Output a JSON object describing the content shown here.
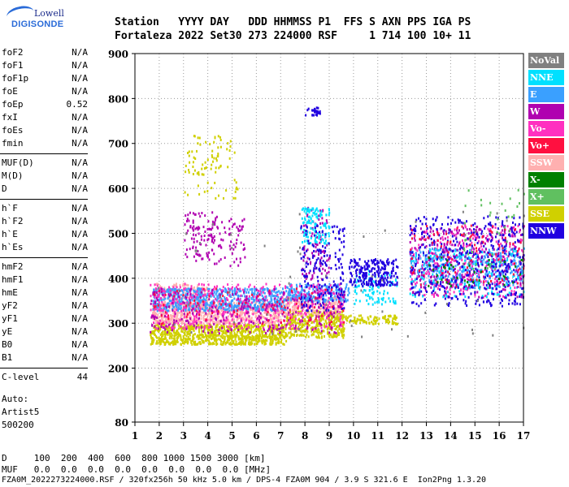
{
  "brand": {
    "line1": "Lowell",
    "line2": "DIGISONDE"
  },
  "header": {
    "row1": "Station   YYYY DAY   DDD HHMMSS P1  FFS S AXN PPS IGA PS",
    "row2": "Fortaleza 2022 Set30 273 224000 RSF     1 714 100 10+ 11"
  },
  "params": [
    {
      "label": "foF2",
      "value": "N/A"
    },
    {
      "label": "foF1",
      "value": "N/A"
    },
    {
      "label": "foF1p",
      "value": "N/A"
    },
    {
      "label": "foE",
      "value": "N/A"
    },
    {
      "label": "foEp",
      "value": "0.52"
    },
    {
      "label": "fxI",
      "value": "N/A"
    },
    {
      "label": "foEs",
      "value": "N/A"
    },
    {
      "label": "fmin",
      "value": "N/A"
    },
    {
      "label": "MUF(D)",
      "value": "N/A"
    },
    {
      "label": "M(D)",
      "value": "N/A"
    },
    {
      "label": "D",
      "value": "N/A"
    },
    {
      "label": "h`F",
      "value": "N/A"
    },
    {
      "label": "h`F2",
      "value": "N/A"
    },
    {
      "label": "h`E",
      "value": "N/A"
    },
    {
      "label": "h`Es",
      "value": "N/A"
    },
    {
      "label": "hmF2",
      "value": "N/A"
    },
    {
      "label": "hmF1",
      "value": "N/A"
    },
    {
      "label": "hmE",
      "value": "N/A"
    },
    {
      "label": "yF2",
      "value": "N/A"
    },
    {
      "label": "yF1",
      "value": "N/A"
    },
    {
      "label": "yE",
      "value": "N/A"
    },
    {
      "label": "B0",
      "value": "N/A"
    },
    {
      "label": "B1",
      "value": "N/A"
    },
    {
      "label": "C-level",
      "value": "44"
    }
  ],
  "auto": {
    "line1": "Auto:",
    "line2": "Artist5",
    "line3": "500200"
  },
  "legend": [
    {
      "label": "NoVal",
      "color": "#808080"
    },
    {
      "label": "NNE",
      "color": "#00e0ff"
    },
    {
      "label": "E",
      "color": "#3aa0ff"
    },
    {
      "label": "W",
      "color": "#b000b0"
    },
    {
      "label": "Vo-",
      "color": "#ff30c0"
    },
    {
      "label": "Vo+",
      "color": "#ff1040"
    },
    {
      "label": "SSW",
      "color": "#ffb0b0"
    },
    {
      "label": "X-",
      "color": "#008000"
    },
    {
      "label": "X+",
      "color": "#60c060"
    },
    {
      "label": "SSE",
      "color": "#d0d000"
    },
    {
      "label": "NNW",
      "color": "#2000e0"
    }
  ],
  "footer": {
    "line1": "D     100  200  400  600  800 1000 1500 3000 [km]",
    "line2": "MUF   0.0  0.0  0.0  0.0  0.0  0.0  0.0  0.0 [MHz]"
  },
  "file_line": "FZA0M_2022273224000.RSF / 320fx256h 50 kHz 5.0 km / DPS-4 FZA0M 904 / 3.9 S 321.6 E  Ion2Png 1.3.20",
  "chart_data": {
    "type": "scatter",
    "xlim": [
      1,
      17
    ],
    "ylim": [
      80,
      900
    ],
    "x_ticks": [
      1,
      2,
      3,
      4,
      5,
      6,
      7,
      8,
      9,
      10,
      11,
      12,
      13,
      14,
      15,
      16,
      17
    ],
    "y_ticks": [
      80,
      200,
      300,
      400,
      500,
      600,
      700,
      800,
      900
    ],
    "grid": true,
    "legend_position": "right",
    "clusters": [
      {
        "series": "SSE",
        "x": [
          1.6,
          7.2
        ],
        "y": [
          255,
          300
        ],
        "n": 900
      },
      {
        "series": "SSE",
        "x": [
          7.2,
          9.6
        ],
        "y": [
          270,
          330
        ],
        "n": 350
      },
      {
        "series": "SSE",
        "x": [
          9.0,
          11.8
        ],
        "y": [
          300,
          320
        ],
        "n": 120
      },
      {
        "series": "SSE",
        "x": [
          3.0,
          5.2
        ],
        "y": [
          580,
          720
        ],
        "n": 90
      },
      {
        "series": "SSW",
        "x": [
          1.7,
          7.0
        ],
        "y": [
          300,
          350
        ],
        "n": 700
      },
      {
        "series": "SSW",
        "x": [
          7.0,
          9.5
        ],
        "y": [
          320,
          360
        ],
        "n": 250
      },
      {
        "series": "SSW",
        "x": [
          1.8,
          4.0
        ],
        "y": [
          340,
          390
        ],
        "n": 150
      },
      {
        "series": "E",
        "x": [
          1.7,
          7.2
        ],
        "y": [
          330,
          380
        ],
        "n": 650
      },
      {
        "series": "E",
        "x": [
          7.2,
          9.8
        ],
        "y": [
          350,
          390
        ],
        "n": 220
      },
      {
        "series": "E",
        "x": [
          12.3,
          17.0
        ],
        "y": [
          380,
          470
        ],
        "n": 400
      },
      {
        "series": "Vo-",
        "x": [
          1.6,
          9.6
        ],
        "y": [
          290,
          390
        ],
        "n": 450
      },
      {
        "series": "Vo-",
        "x": [
          12.3,
          17.0
        ],
        "y": [
          360,
          520
        ],
        "n": 260
      },
      {
        "series": "W",
        "x": [
          1.6,
          9.6
        ],
        "y": [
          280,
          380
        ],
        "n": 300
      },
      {
        "series": "W",
        "x": [
          3.0,
          5.5
        ],
        "y": [
          430,
          550
        ],
        "n": 160
      },
      {
        "series": "W",
        "x": [
          7.8,
          9.0
        ],
        "y": [
          400,
          560
        ],
        "n": 90
      },
      {
        "series": "W",
        "x": [
          12.3,
          17.0
        ],
        "y": [
          360,
          520
        ],
        "n": 300
      },
      {
        "series": "NNE",
        "x": [
          7.8,
          9.0
        ],
        "y": [
          480,
          560
        ],
        "n": 120
      },
      {
        "series": "NNE",
        "x": [
          10.0,
          11.8
        ],
        "y": [
          340,
          420
        ],
        "n": 90
      },
      {
        "series": "NNE",
        "x": [
          12.3,
          17.0
        ],
        "y": [
          360,
          470
        ],
        "n": 150
      },
      {
        "series": "NNW",
        "x": [
          9.8,
          11.8
        ],
        "y": [
          385,
          445
        ],
        "n": 230
      },
      {
        "series": "NNW",
        "x": [
          7.8,
          9.6
        ],
        "y": [
          330,
          520
        ],
        "n": 180
      },
      {
        "series": "NNW",
        "x": [
          12.3,
          17.0
        ],
        "y": [
          340,
          540
        ],
        "n": 420
      },
      {
        "series": "NNW",
        "x": [
          8.0,
          8.6
        ],
        "y": [
          765,
          785
        ],
        "n": 30
      },
      {
        "series": "Vo+",
        "x": [
          1.6,
          9.6
        ],
        "y": [
          300,
          380
        ],
        "n": 90
      },
      {
        "series": "Vo+",
        "x": [
          12.3,
          17.0
        ],
        "y": [
          380,
          520
        ],
        "n": 90
      },
      {
        "series": "X-",
        "x": [
          13.0,
          17.0
        ],
        "y": [
          380,
          450
        ],
        "n": 40
      },
      {
        "series": "X+",
        "x": [
          14.5,
          17.0
        ],
        "y": [
          420,
          600
        ],
        "n": 40
      },
      {
        "series": "NoVal",
        "x": [
          1.6,
          17.0
        ],
        "y": [
          260,
          560
        ],
        "n": 60
      }
    ]
  }
}
